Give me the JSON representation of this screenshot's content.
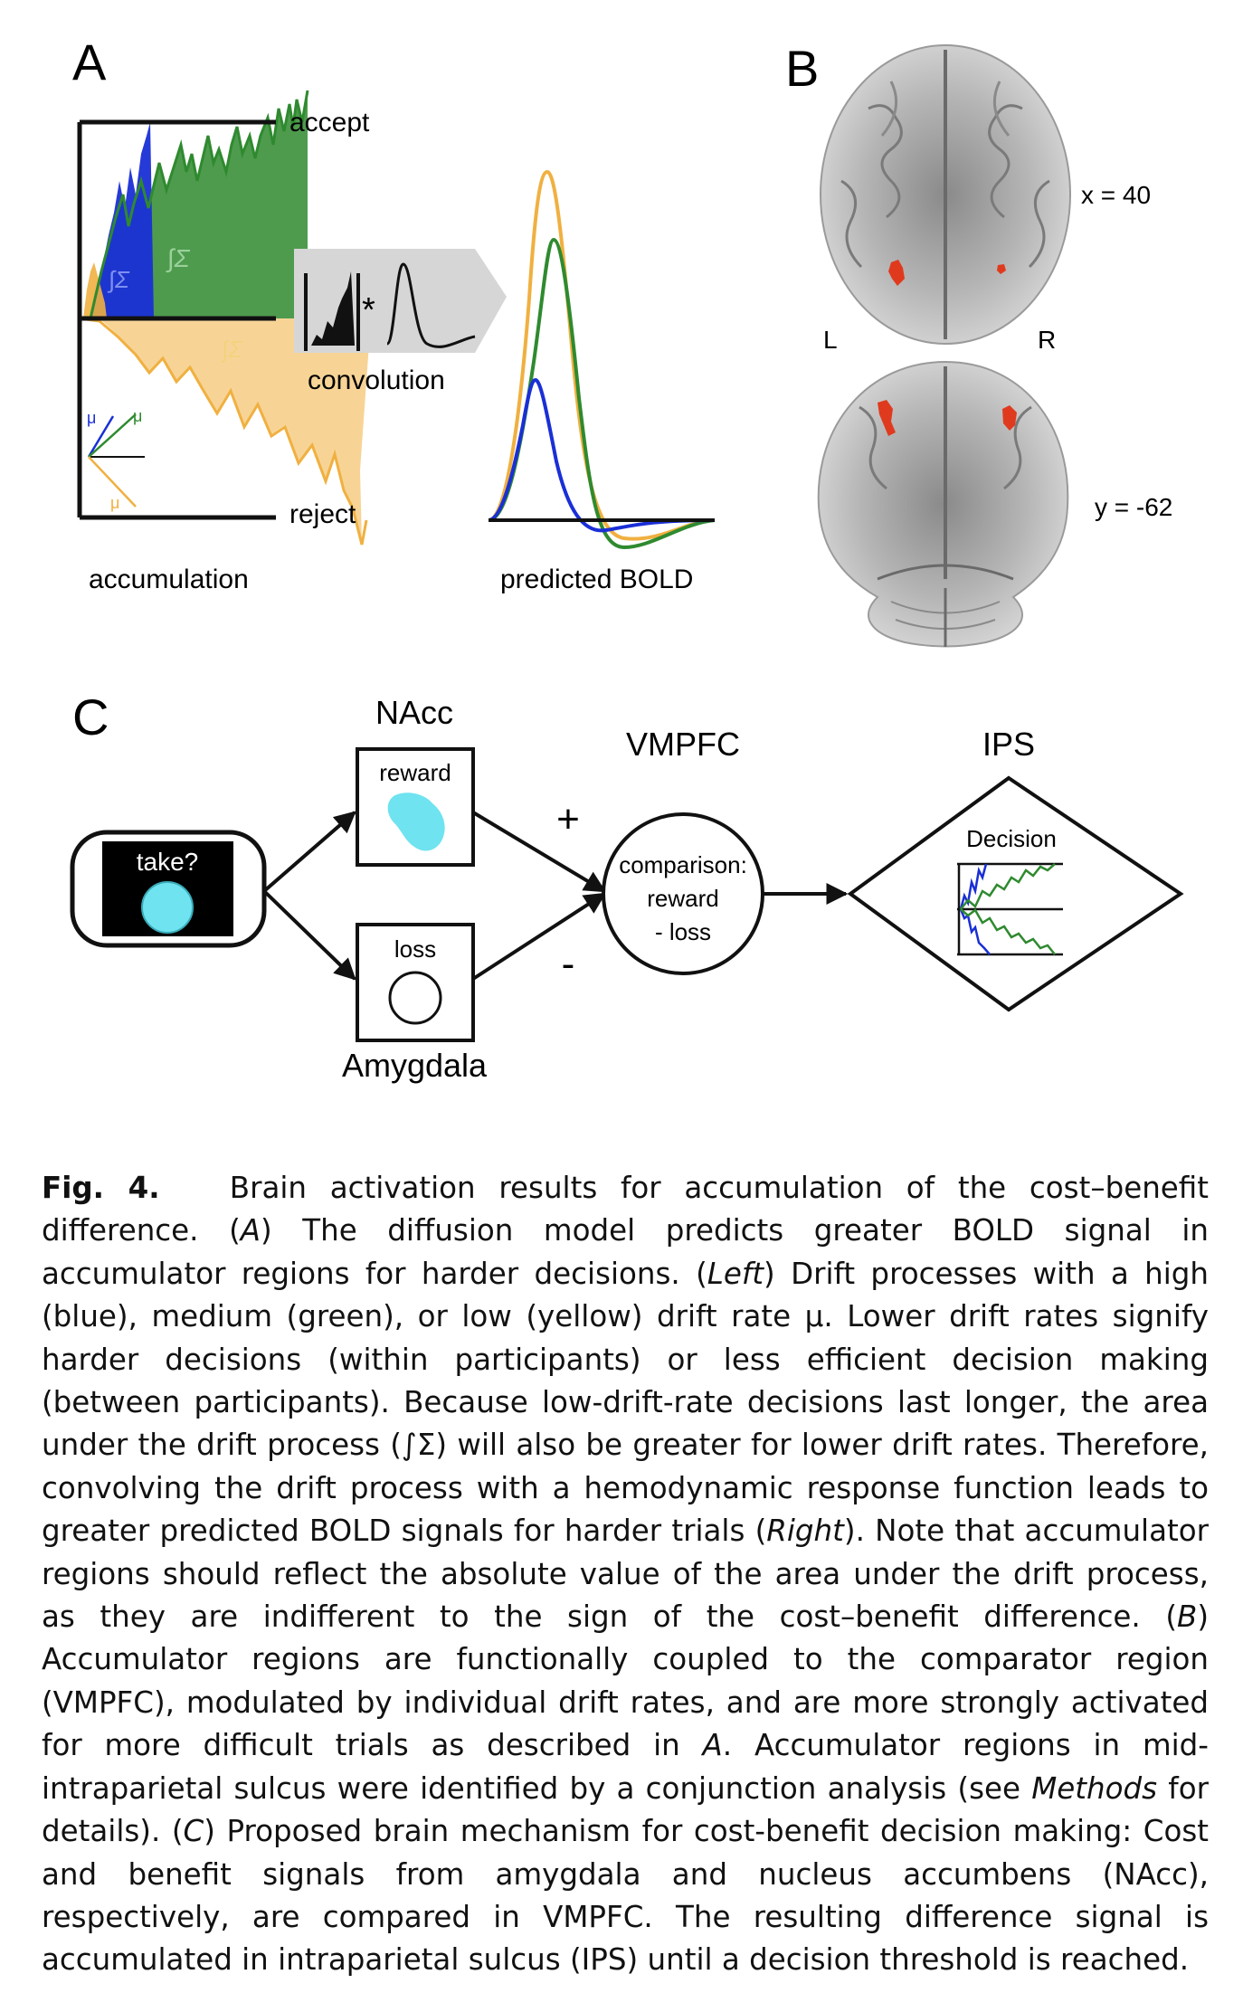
{
  "panel_a": {
    "panel_label": "A",
    "accept_label": "accept",
    "reject_label": "reject",
    "integral_label": "∫Σ",
    "drift_label": "μ",
    "convolution_label": "convolution",
    "convolution_symbol": "*",
    "accumulation_label": "accumulation",
    "predicted_bold_label": "predicted BOLD",
    "colors": {
      "high": "#1a2fd6",
      "medium": "#2f8a2f",
      "low": "#f0b040"
    }
  },
  "panel_b": {
    "panel_label": "B",
    "axial_label": "x = 40",
    "coronal_label": "y = -62",
    "left_label": "L",
    "right_label": "R",
    "activation_color": "#e03a1e"
  },
  "panel_c": {
    "panel_label": "C",
    "stimulus_label": "take?",
    "nacc_title": "NAcc",
    "reward_label": "reward",
    "amygdala_title": "Amygdala",
    "loss_label": "loss",
    "plus_sign": "+",
    "minus_sign": "-",
    "vmpfc_title": "VMPFC",
    "comparison_lines": [
      "comparison:",
      "reward",
      "- loss"
    ],
    "ips_title": "IPS",
    "decision_label": "Decision",
    "colors": {
      "stimulus": "#6fe3f0",
      "high": "#1a2fd6",
      "medium": "#2f8a2f"
    }
  },
  "caption": {
    "fig_label": "Fig. 4.",
    "title": "Brain activation results for accumulation of the cost–benefit difference.",
    "part_1": "(",
    "ref_A": "A",
    "part_2": ") The diffusion model predicts greater BOLD signal in accumulator regions for harder decisions. (",
    "ref_left": "Left",
    "part_3": ") Drift processes with a high (blue), medium (green), or low (yellow) drift rate μ. Lower drift rates signify harder decisions (within participants) or less efficient decision making (between participants). Because low-drift-rate decisions last longer, the area under the drift process (∫Σ) will also be greater for lower drift rates. Therefore, convolving the drift process with a hemodynamic response function leads to greater predicted BOLD signals for harder trials (",
    "ref_right": "Right",
    "part_4": "). Note that accumulator regions should reflect the absolute value of the area under the drift process, as they are indifferent to the sign of the cost–benefit difference. (",
    "ref_B": "B",
    "part_5": ") Accumulator regions are functionally coupled to the comparator region (VMPFC), modulated by individual drift rates, and are more strongly activated for more difficult trials as described in ",
    "ref_A2": "A",
    "part_6": ". Accumulator regions in mid-intraparietal sulcus were identified by a conjunction analysis (see ",
    "ref_methods": "Methods",
    "part_7": " for details). (",
    "ref_C": "C",
    "part_8": ") Proposed brain mechanism for cost-benefit decision making: Cost and benefit signals from amygdala and nucleus accumbens (NAcc), respectively, are compared in VMPFC. The resulting difference signal is accumulated in intraparietal sulcus (IPS) until a decision threshold is reached."
  }
}
